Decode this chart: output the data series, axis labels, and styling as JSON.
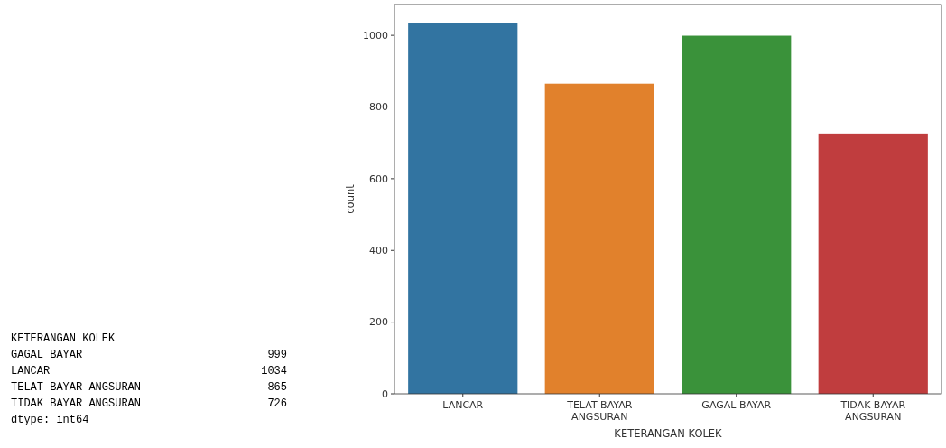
{
  "chart_data": [
    {
      "type": "other",
      "title": "KETERANGAN KOLEK",
      "categories": [
        "GAGAL BAYAR",
        "LANCAR",
        "TELAT BAYAR ANGSURAN",
        "TIDAK BAYAR ANGSURAN"
      ],
      "values": [
        999,
        1034,
        865,
        726
      ],
      "data_labels": true,
      "annotations": [
        "dtype: int64"
      ]
    },
    {
      "type": "bar",
      "xlabel": "KETERANGAN KOLEK",
      "ylabel": "count",
      "categories": [
        "LANCAR",
        "TELAT BAYAR ANGSURAN",
        "GAGAL BAYAR",
        "TIDAK BAYAR ANGSURAN"
      ],
      "values": [
        1034,
        865,
        999,
        726
      ],
      "colors": [
        "#3274a1",
        "#e1812c",
        "#3a923a",
        "#c03d3e"
      ],
      "ylim": [
        0,
        1086
      ],
      "yticks": [
        0,
        200,
        400,
        600,
        800,
        1000
      ],
      "grid": false
    }
  ]
}
